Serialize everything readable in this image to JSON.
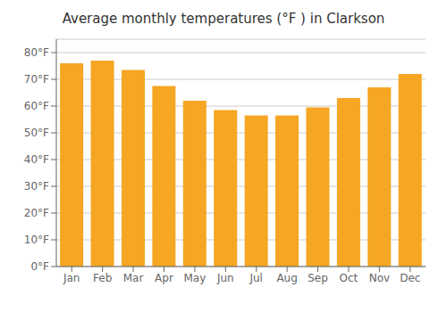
{
  "chart_data": {
    "type": "bar",
    "title": "Average monthly temperatures (°F ) in Clarkson",
    "categories": [
      "Jan",
      "Feb",
      "Mar",
      "Apr",
      "May",
      "Jun",
      "Jul",
      "Aug",
      "Sep",
      "Oct",
      "Nov",
      "Dec"
    ],
    "values": [
      76,
      77,
      73.5,
      67.5,
      62,
      58.5,
      56.5,
      56.5,
      59.5,
      63,
      67,
      72
    ],
    "color": "#F5A623",
    "ylim": [
      0,
      85
    ],
    "yticks": [
      {
        "value": 0,
        "label": "0°F"
      },
      {
        "value": 10,
        "label": "10°F"
      },
      {
        "value": 20,
        "label": "20°F"
      },
      {
        "value": 30,
        "label": "30°F"
      },
      {
        "value": 40,
        "label": "40°F"
      },
      {
        "value": 50,
        "label": "50°F"
      },
      {
        "value": 60,
        "label": "60°F"
      },
      {
        "value": 70,
        "label": "70°F"
      },
      {
        "value": 80,
        "label": "80°F"
      }
    ],
    "grid": true
  }
}
